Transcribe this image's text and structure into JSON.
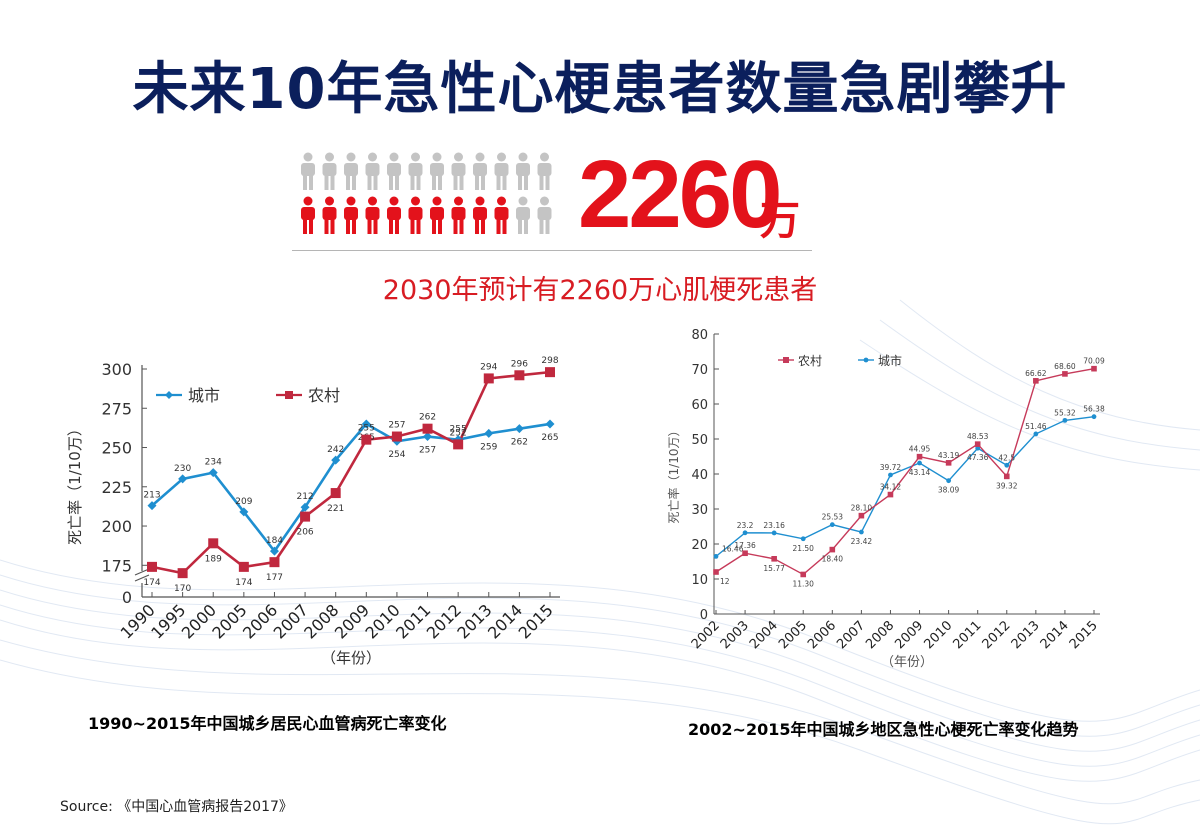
{
  "title": "未来10年急性心梗患者数量急剧攀升",
  "headline": {
    "number": "2260",
    "unit": "万",
    "people_total": 24,
    "people_highlighted": 10,
    "subtitle": "2030年预计有2260万心肌梗死患者"
  },
  "colors": {
    "title": "#0b1f5c",
    "accent_red": "#e3121b",
    "person_grey": "#c4c4c4",
    "urban_blue": "#1f8fd0",
    "rural_red_left": "#c0283e",
    "rural_red_right": "#c63a5a"
  },
  "icons": {
    "person": "person-icon"
  },
  "chart_data": [
    {
      "type": "line",
      "categories": [
        "1990",
        "1995",
        "2000",
        "2005",
        "2006",
        "2007",
        "2008",
        "2009",
        "2010",
        "2011",
        "2012",
        "2013",
        "2014",
        "2015"
      ],
      "series": [
        {
          "name": "城市",
          "values": [
            213,
            230,
            234,
            209,
            184,
            212,
            242,
            265,
            254,
            257,
            255,
            259,
            262,
            265
          ],
          "labels": [
            "213",
            "230",
            "234",
            "209",
            "184",
            "212",
            "242",
            "265",
            "254",
            "257",
            "",
            "259",
            "262",
            "265"
          ]
        },
        {
          "name": "农村",
          "values": [
            174,
            170,
            189,
            174,
            177,
            206,
            221,
            255,
            257,
            262,
            252,
            294,
            296,
            298
          ],
          "labels": [
            "174",
            "170",
            "189",
            "174",
            "177",
            "206",
            "221",
            "255",
            "257",
            "262",
            "252",
            "294",
            "296",
            "298"
          ]
        }
      ],
      "extra_labels": [
        "255"
      ],
      "ylabel": "死亡率（1/10万）",
      "xlabel": "（年份）",
      "ylim": [
        165,
        300
      ],
      "yticks": [
        "0",
        "175",
        "200",
        "225",
        "250",
        "275",
        "300"
      ],
      "axis_break": true,
      "legend_position": "top-left",
      "caption": "1990~2015年中国城乡居民心血管病死亡率变化"
    },
    {
      "type": "line",
      "categories": [
        "2002",
        "2003",
        "2004",
        "2005",
        "2006",
        "2007",
        "2008",
        "2009",
        "2010",
        "2011",
        "2012",
        "2013",
        "2014",
        "2015"
      ],
      "series": [
        {
          "name": "农村",
          "values": [
            12,
            17.36,
            15.77,
            11.3,
            18.4,
            28.1,
            34.12,
            44.95,
            43.19,
            48.53,
            39.32,
            66.62,
            68.6,
            70.09
          ],
          "labels": [
            "12",
            "17.36",
            "15.77",
            "11.30",
            "18.40",
            "28.10",
            "34.12",
            "44.95",
            "43.19",
            "48.53",
            "39.32",
            "66.62",
            "68.60",
            "70.09"
          ]
        },
        {
          "name": "城市",
          "values": [
            16.46,
            23.2,
            23.16,
            21.5,
            25.53,
            23.42,
            39.72,
            43.14,
            38.09,
            47.36,
            42.5,
            51.46,
            55.32,
            56.38
          ],
          "labels": [
            "16.46",
            "23.2",
            "23.16",
            "21.50",
            "25.53",
            "23.42",
            "39.72",
            "43.14",
            "38.09",
            "47.36",
            "42.5",
            "51.46",
            "55.32",
            "56.38"
          ]
        }
      ],
      "ylabel": "死亡率（1/10万）",
      "xlabel": "（年份）",
      "ylim": [
        0,
        80
      ],
      "yticks": [
        "0",
        "10",
        "20",
        "30",
        "40",
        "50",
        "60",
        "70",
        "80"
      ],
      "legend_position": "top-left",
      "caption": "2002~2015年中国城乡地区急性心梗死亡率变化趋势"
    }
  ],
  "source": "Source: 《中国心血管病报告2017》"
}
